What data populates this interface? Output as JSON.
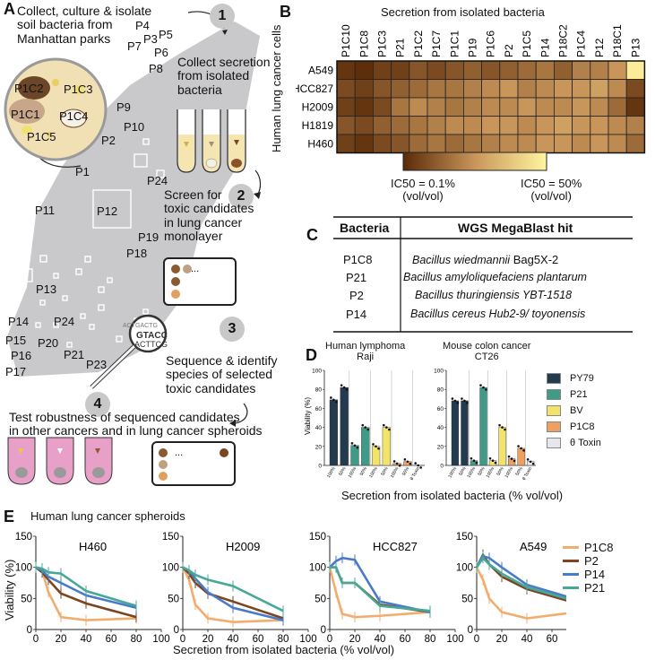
{
  "panelA": {
    "letter": "A",
    "text_collect": "Collect, culture & isolate\nsoil bacteria from\nManhattan parks",
    "step1": "1",
    "step2": "2",
    "step3": "3",
    "step4": "4",
    "text_secretion": "Collect secretion\nfrom isolated\nbacteria",
    "text_screen": "Screen for\ntoxic candidates\nin lung cancer\nmonolayer",
    "text_sequence": "Sequence & identify\nspecies of selected\ntoxic candidates",
    "text_test": "Test robustness of sequenced candidates\nin other cancers and in lung cancer spheroids",
    "dish_labels": [
      "P1C2",
      "P1C3",
      "P1C1",
      "P1C4",
      "P1C5"
    ],
    "map_labels": [
      "P4",
      "P3",
      "P5",
      "P7",
      "P6",
      "P8",
      "P9",
      "P10",
      "P2",
      "P1",
      "P24",
      "P11",
      "P12",
      "P19",
      "P18",
      "P13",
      "P14",
      "P24",
      "P15",
      "P20",
      "P16",
      "P21",
      "P17",
      "P23"
    ],
    "dna_text": [
      "ACTGACTG",
      "GTACC",
      "ACTTCG"
    ],
    "ellipsis": "..."
  },
  "panelB": {
    "letter": "B",
    "title": "Secretion from isolated bacteria",
    "ylabel": "Human lung cancer cells",
    "columns": [
      "P1C10",
      "P1C8",
      "P1C3",
      "P21",
      "P1C2",
      "P1C7",
      "P1C1",
      "P19",
      "P1C6",
      "P2",
      "P1C5",
      "P14",
      "P18C2",
      "P1C4",
      "P12",
      "P18C1",
      "P13"
    ],
    "rows": [
      "A549",
      "HCC827",
      "H2009",
      "H1819",
      "H460"
    ],
    "colorbar_left": "IC50 = 0.1%\n(vol/vol)",
    "colorbar_right": "IC50 = 50%\n(vol/vol)",
    "color_low": "#5a2a08",
    "color_high": "#fff5a0"
  },
  "panelC": {
    "letter": "C",
    "header_bacteria": "Bacteria",
    "header_hit": "WGS MegaBlast hit",
    "rows": [
      {
        "bac": "P1C8",
        "species": "Bacillus wiedmannii",
        "strain": " Bag5X-2",
        "strain_italic": false
      },
      {
        "bac": "P21",
        "species": "Bacillus amyloliquefaciens plantarum",
        "strain": "",
        "strain_italic": true
      },
      {
        "bac": "P2",
        "species": "Bacillus thuringiensis YBT-1518",
        "strain": "",
        "strain_italic": true
      },
      {
        "bac": "P14",
        "species": "Bacillus cereus Hub2-9/ toyonensis",
        "strain": "",
        "strain_italic": true
      }
    ]
  },
  "chart_data": [
    {
      "type": "heatmap",
      "panel": "B",
      "title": "Secretion from isolated bacteria",
      "ylabel": "Human lung cancer cells",
      "x": [
        "P1C10",
        "P1C8",
        "P1C3",
        "P21",
        "P1C2",
        "P1C7",
        "P1C1",
        "P19",
        "P1C6",
        "P2",
        "P1C5",
        "P14",
        "P18C2",
        "P1C4",
        "P12",
        "P18C1",
        "P13"
      ],
      "y": [
        "A549",
        "HCC827",
        "H2009",
        "H1819",
        "H460"
      ],
      "colorbar": {
        "low": "IC50 = 0.1% (vol/vol)",
        "high": "IC50 = 50% (vol/vol)"
      },
      "values": [
        [
          0.05,
          0.02,
          0.1,
          0.1,
          0.2,
          0.15,
          0.2,
          0.25,
          0.2,
          0.25,
          0.3,
          0.35,
          0.25,
          0.4,
          0.4,
          0.5,
          0.95
        ],
        [
          0.15,
          0.1,
          0.2,
          0.25,
          0.3,
          0.35,
          0.35,
          0.4,
          0.45,
          0.5,
          0.4,
          0.45,
          0.5,
          0.5,
          0.55,
          0.45,
          0.15
        ],
        [
          0.1,
          0.05,
          0.15,
          0.35,
          0.45,
          0.4,
          0.35,
          0.4,
          0.45,
          0.45,
          0.5,
          0.45,
          0.45,
          0.5,
          0.45,
          0.3,
          0.05
        ],
        [
          0.2,
          0.15,
          0.25,
          0.3,
          0.35,
          0.4,
          0.45,
          0.45,
          0.5,
          0.5,
          0.45,
          0.5,
          0.55,
          0.5,
          0.5,
          0.45,
          0.4
        ],
        [
          0.1,
          0.05,
          0.15,
          0.2,
          0.3,
          0.35,
          0.3,
          0.35,
          0.4,
          0.45,
          0.45,
          0.5,
          0.5,
          0.45,
          0.5,
          0.45,
          0.3
        ]
      ]
    },
    {
      "type": "bar",
      "panel": "D",
      "title": "Human lymphoma\nRaji",
      "xlabel": "Secretion from isolated bacteria (% vol/vol)",
      "ylabel": "Viability (%)",
      "ylim": [
        0,
        100
      ],
      "yticks": [
        0,
        20,
        40,
        60,
        80,
        100
      ],
      "categories": [
        "100%",
        "50%",
        "100%",
        "50%",
        "100%",
        "50%",
        "100%",
        "50%",
        "θ Toxin"
      ],
      "groups": [
        {
          "name": "PY79",
          "color": "#243a4e",
          "values": [
            69,
            82
          ]
        },
        {
          "name": "P21",
          "color": "#3f9a86",
          "values": [
            21,
            40
          ]
        },
        {
          "name": "BV",
          "color": "#f2e46a",
          "values": [
            20,
            40
          ]
        },
        {
          "name": "P1C8",
          "color": "#ef9f5e",
          "values": [
            2,
            4
          ]
        },
        {
          "name": "θ Toxin",
          "color": "#e5e7ec",
          "values": [
            0
          ]
        }
      ]
    },
    {
      "type": "bar",
      "panel": "D",
      "title": "Mouse colon cancer\nCT26",
      "xlabel": "Secretion from isolated bacteria (% vol/vol)",
      "ylabel": "",
      "ylim": [
        0,
        100
      ],
      "yticks": [
        0,
        20,
        40,
        60,
        80,
        100
      ],
      "categories": [
        "100%",
        "50%",
        "100%",
        "50%",
        "100%",
        "50%",
        "100%",
        "50%",
        "θ Toxin"
      ],
      "groups": [
        {
          "name": "PY79",
          "color": "#243a4e",
          "values": [
            68,
            68
          ]
        },
        {
          "name": "P21",
          "color": "#3f9a86",
          "values": [
            5,
            82
          ]
        },
        {
          "name": "BV",
          "color": "#f2e46a",
          "values": [
            5,
            40
          ]
        },
        {
          "name": "P1C8",
          "color": "#ef9f5e",
          "values": [
            7,
            18
          ]
        },
        {
          "name": "θ Toxin",
          "color": "#e5e7ec",
          "values": [
            4
          ]
        }
      ]
    },
    {
      "type": "line",
      "panel": "E",
      "title": "H460",
      "xlim": [
        0,
        100
      ],
      "ylim": [
        0,
        150
      ],
      "xticks": [
        0,
        20,
        40,
        60,
        80,
        100
      ],
      "yticks": [
        0,
        50,
        100,
        150
      ],
      "x": [
        0,
        5,
        10,
        20,
        40,
        80
      ],
      "series": [
        {
          "name": "P1C8",
          "values": [
            100,
            95,
            60,
            20,
            15,
            18
          ]
        },
        {
          "name": "P2",
          "values": [
            100,
            92,
            80,
            58,
            42,
            20
          ]
        },
        {
          "name": "P14",
          "values": [
            100,
            95,
            85,
            75,
            55,
            35
          ]
        },
        {
          "name": "P21",
          "values": [
            100,
            98,
            92,
            90,
            62,
            38
          ]
        }
      ]
    },
    {
      "type": "line",
      "panel": "E",
      "title": "H2009",
      "xlim": [
        0,
        100
      ],
      "ylim": [
        0,
        150
      ],
      "xticks": [
        0,
        20,
        40,
        60,
        80,
        100
      ],
      "yticks": [
        0,
        50,
        100,
        150
      ],
      "x": [
        0,
        5,
        10,
        20,
        40,
        80
      ],
      "series": [
        {
          "name": "P1C8",
          "values": [
            100,
            80,
            40,
            18,
            12,
            15
          ]
        },
        {
          "name": "P2",
          "values": [
            100,
            90,
            75,
            58,
            45,
            18
          ]
        },
        {
          "name": "P14",
          "values": [
            100,
            95,
            82,
            60,
            35,
            15
          ]
        },
        {
          "name": "P21",
          "values": [
            100,
            95,
            88,
            80,
            70,
            30
          ]
        }
      ]
    },
    {
      "type": "line",
      "panel": "E",
      "title": "HCC827",
      "xlim": [
        0,
        100
      ],
      "ylim": [
        0,
        150
      ],
      "xticks": [
        0,
        20,
        40,
        60,
        80,
        100
      ],
      "yticks": [
        0,
        50,
        100,
        150
      ],
      "x": [
        0,
        5,
        10,
        20,
        40,
        80
      ],
      "series": [
        {
          "name": "P1C8",
          "values": [
            100,
            60,
            25,
            20,
            22,
            28
          ]
        },
        {
          "name": "P2",
          "values": [
            100,
            100,
            75,
            75,
            40,
            28
          ]
        },
        {
          "name": "P14",
          "values": [
            100,
            110,
            115,
            112,
            45,
            28
          ]
        },
        {
          "name": "P21",
          "values": [
            100,
            100,
            75,
            75,
            38,
            30
          ]
        }
      ]
    },
    {
      "type": "line",
      "panel": "E",
      "title": "A549",
      "xlim": [
        0,
        100
      ],
      "ylim": [
        0,
        150
      ],
      "xticks": [
        0,
        20,
        40,
        60,
        80,
        100
      ],
      "yticks": [
        0,
        50,
        100,
        150
      ],
      "x": [
        0,
        5,
        10,
        20,
        40,
        80
      ],
      "series": [
        {
          "name": "P1C8",
          "values": [
            100,
            80,
            50,
            28,
            18,
            28
          ]
        },
        {
          "name": "P2",
          "values": [
            100,
            120,
            105,
            85,
            65,
            42
          ]
        },
        {
          "name": "P14",
          "values": [
            100,
            118,
            115,
            100,
            72,
            48
          ]
        },
        {
          "name": "P21",
          "values": [
            100,
            115,
            105,
            90,
            68,
            45
          ]
        }
      ]
    }
  ],
  "panelD": {
    "letter": "D",
    "title_left": "Human lymphoma\nRaji",
    "title_right": "Mouse colon cancer\nCT26",
    "ylabel": "Viability (%)",
    "xlabel": "Secretion from isolated bacteria (% vol/vol)",
    "legend": [
      {
        "name": "PY79",
        "color": "#243a4e"
      },
      {
        "name": "P21",
        "color": "#3f9a86"
      },
      {
        "name": "BV",
        "color": "#f2e46a"
      },
      {
        "name": "P1C8",
        "color": "#ef9f5e"
      },
      {
        "name": "θ Toxin",
        "color": "#e5e7ec"
      }
    ]
  },
  "panelE": {
    "letter": "E",
    "title": "Human lung cancer spheroids",
    "ylabel": "Viability (%)",
    "xlabel": "Secretion from isolated bacteria (% vol/vol)",
    "legend": [
      {
        "name": "P1C8",
        "color": "#f2ad6e"
      },
      {
        "name": "P2",
        "color": "#7a4520"
      },
      {
        "name": "P14",
        "color": "#4a7ac8"
      },
      {
        "name": "P21",
        "color": "#48a898"
      }
    ]
  }
}
